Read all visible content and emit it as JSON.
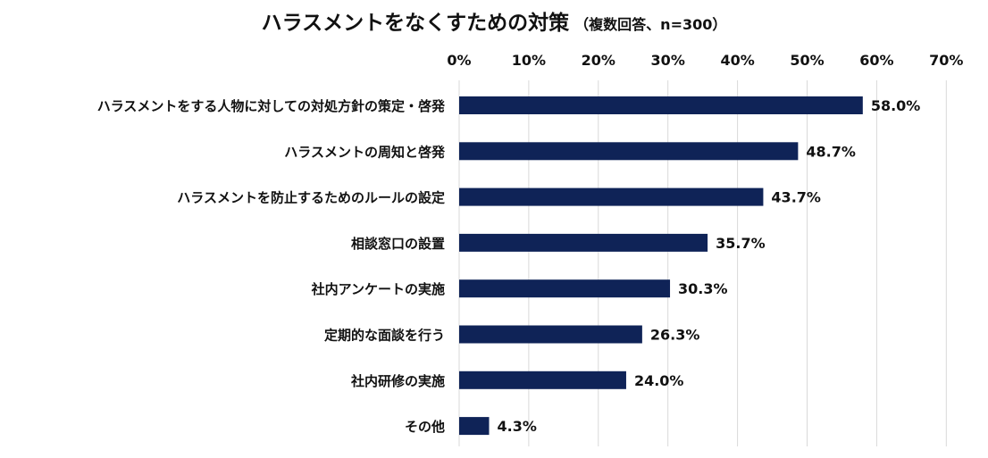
{
  "chart_data": {
    "type": "bar",
    "orientation": "horizontal",
    "title": "ハラスメントをなくすための対策",
    "subtitle": "（複数回答、n=300）",
    "categories": [
      "ハラスメントをする人物に対しての対処方針の策定・啓発",
      "ハラスメントの周知と啓発",
      "ハラスメントを防止するためのルールの設定",
      "相談窓口の設置",
      "社内アンケートの実施",
      "定期的な面談を行う",
      "社内研修の実施",
      "その他"
    ],
    "values": [
      58.0,
      48.7,
      43.7,
      35.7,
      30.3,
      26.3,
      24.0,
      4.3
    ],
    "value_labels": [
      "58.0%",
      "48.7%",
      "43.7%",
      "35.7%",
      "30.3%",
      "26.3%",
      "24.0%",
      "4.3%"
    ],
    "xlim": [
      0,
      70
    ],
    "x_ticks": [
      "0%",
      "10%",
      "20%",
      "30%",
      "40%",
      "50%",
      "60%",
      "70%"
    ],
    "grid": true,
    "axis_position": "top",
    "bar_color": "#0f2357",
    "grid_color": "#d9d9d9"
  }
}
